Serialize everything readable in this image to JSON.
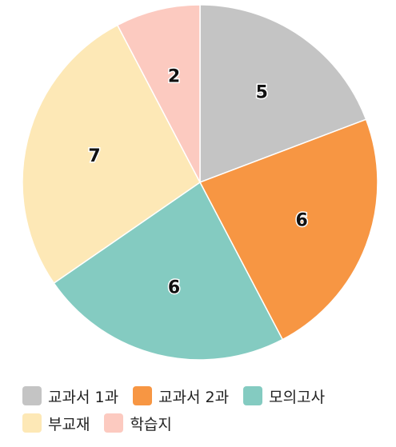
{
  "chart_data": {
    "type": "pie",
    "title": "",
    "categories": [
      "교과서 1과",
      "교과서 2과",
      "모의고사",
      "부교재",
      "학습지"
    ],
    "values": [
      5,
      6,
      6,
      7,
      2
    ],
    "colors": [
      "#c4c4c4",
      "#f79643",
      "#84cbc1",
      "#fde8b6",
      "#fccac0"
    ],
    "start_angle_deg": 0,
    "direction": "clockwise",
    "data_labels": [
      "5",
      "6",
      "6",
      "7",
      "2"
    ],
    "legend_position": "bottom"
  }
}
